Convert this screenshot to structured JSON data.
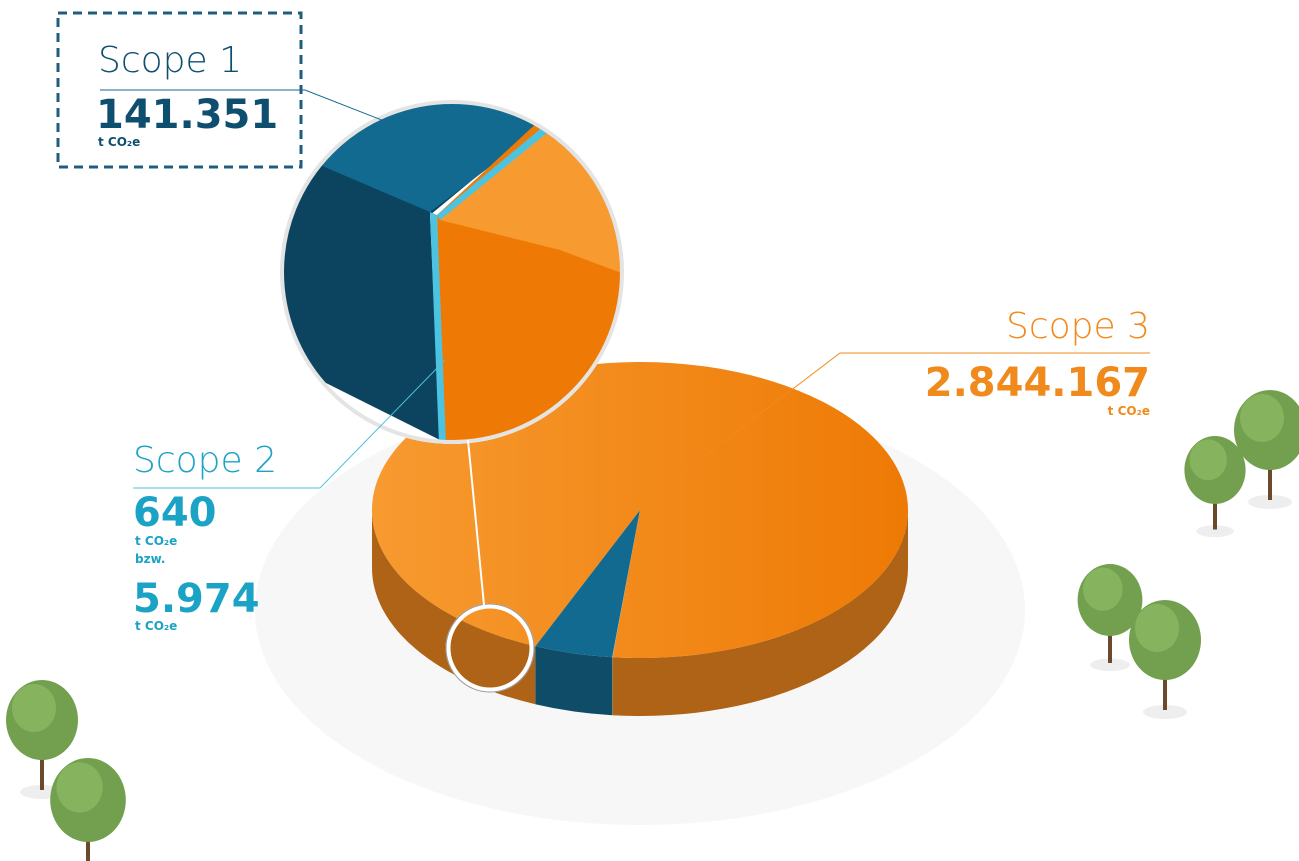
{
  "chart_data": {
    "type": "pie",
    "categories": [
      "Scope 1",
      "Scope 2",
      "Scope 3"
    ],
    "values": [
      141351,
      640,
      2844167
    ],
    "value_labels": [
      "141.351",
      "640",
      "2.844.167"
    ],
    "colors": [
      "#136a90",
      "#4cc3e0",
      "#f28a1e"
    ],
    "unit": "t CO₂e",
    "annotations": [
      {
        "label": "bzw."
      },
      {
        "label": "5.974"
      }
    ]
  }
}
